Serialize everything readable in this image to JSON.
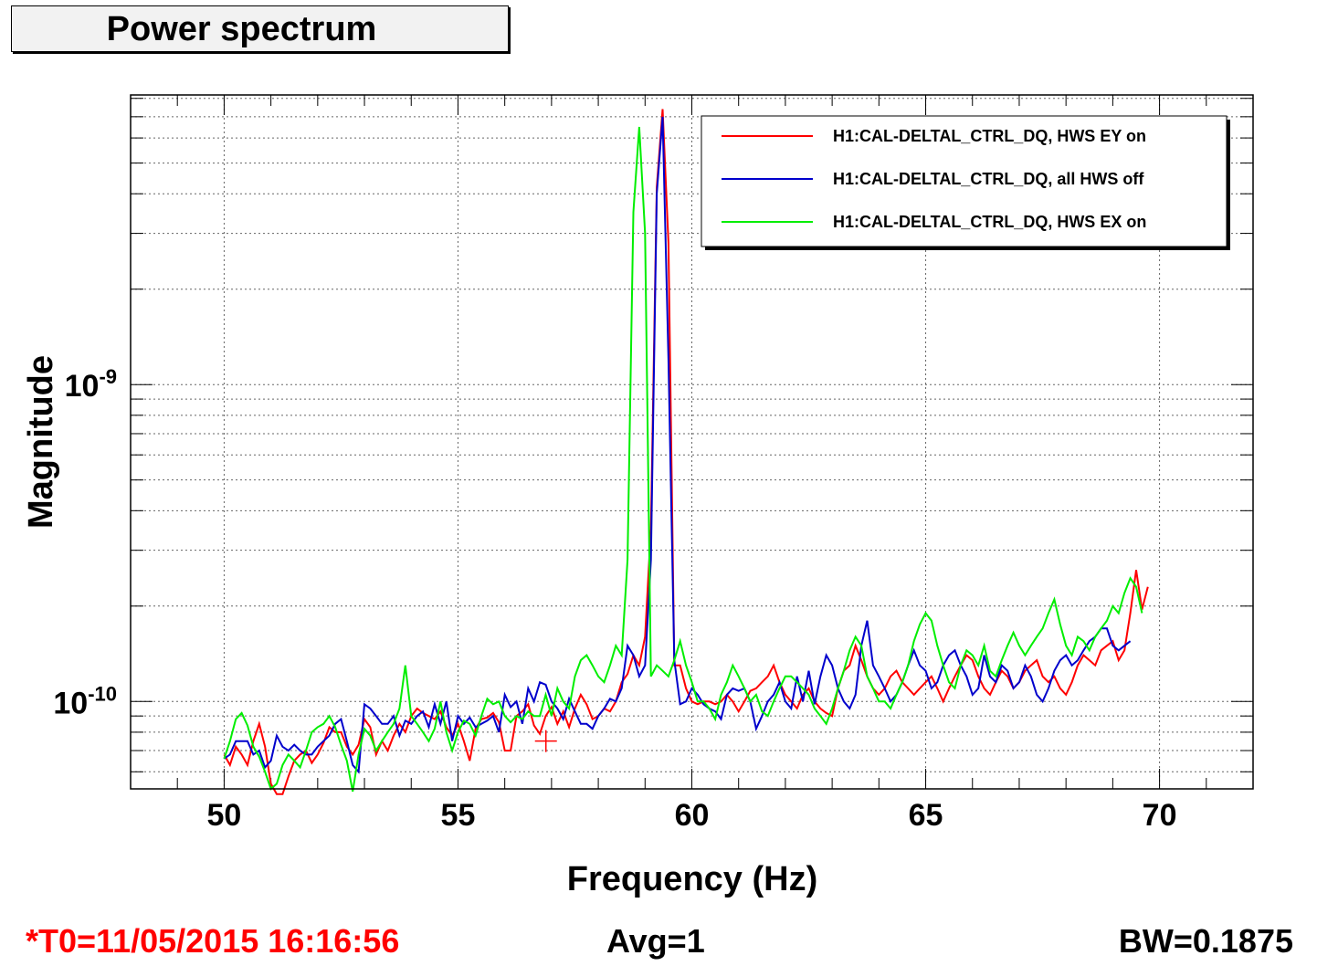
{
  "title": "Power spectrum",
  "footer": {
    "t0": "*T0=11/05/2015 16:16:56",
    "t0_color": "#ff0000",
    "avg": "Avg=1",
    "bw": "BW=0.1875"
  },
  "chart_data": {
    "type": "line",
    "xlabel": "Frequency (Hz)",
    "ylabel": "Magnitude",
    "xlim": [
      48,
      72
    ],
    "ylim": [
      5.3e-11,
      8.2e-09
    ],
    "yscale": "log",
    "grid": true,
    "legend_position": "top-right",
    "x_ticks": [
      50,
      55,
      60,
      65,
      70
    ],
    "y_ticks": [
      {
        "value": 1e-10,
        "base": "10",
        "exp": "-10"
      },
      {
        "value": 1e-09,
        "base": "10",
        "exp": "-9"
      }
    ],
    "series": [
      {
        "name": "H1:CAL-DELTAL_CTRL_DQ, HWS EY on",
        "color": "#ff0000",
        "x0": 50,
        "dx": 0.125,
        "values": [
          6.8e-11,
          6.3e-11,
          7.2e-11,
          6.8e-11,
          6.3e-11,
          7.5e-11,
          8.5e-11,
          7.2e-11,
          5.5e-11,
          5.1e-11,
          5.1e-11,
          5.8e-11,
          6.5e-11,
          6.8e-11,
          7e-11,
          6.4e-11,
          6.8e-11,
          7.4e-11,
          8.3e-11,
          8e-11,
          8e-11,
          7.2e-11,
          6.8e-11,
          7.3e-11,
          8.8e-11,
          8.3e-11,
          6.8e-11,
          7.5e-11,
          7e-11,
          7.8e-11,
          8.5e-11,
          8e-11,
          9e-11,
          9.5e-11,
          9.2e-11,
          9e-11,
          8.8e-11,
          9.3e-11,
          8.3e-11,
          7.8e-11,
          8.5e-11,
          7.5e-11,
          6.5e-11,
          8.2e-11,
          8.8e-11,
          8.9e-11,
          9.2e-11,
          8.6e-11,
          7e-11,
          7e-11,
          9e-11,
          9.3e-11,
          9.8e-11,
          8.4e-11,
          7.9e-11,
          9e-11,
          9.6e-11,
          8.5e-11,
          9.3e-11,
          8.3e-11,
          9.5e-11,
          1.05e-10,
          9.8e-11,
          8.8e-11,
          9e-11,
          9.5e-11,
          9.3e-11,
          1e-10,
          1.15e-10,
          1.22e-10,
          1.4e-10,
          1.3e-10,
          1.6e-10,
          3.5e-10,
          4.2e-09,
          7.4e-09,
          2.8e-09,
          1.3e-10,
          1.3e-10,
          1.1e-10,
          1e-10,
          9.8e-11,
          1e-10,
          1e-10,
          9.8e-11,
          1e-10,
          1.05e-10,
          1e-10,
          9.3e-11,
          1e-10,
          1.08e-10,
          1.1e-10,
          1.15e-10,
          1.2e-10,
          1.3e-10,
          1.15e-10,
          1.05e-10,
          1e-10,
          9.5e-11,
          1.05e-10,
          1.1e-10,
          1e-10,
          9.5e-11,
          9.2e-11,
          9e-11,
          1.1e-10,
          1.25e-10,
          1.3e-10,
          1.5e-10,
          1.35e-10,
          1.2e-10,
          1.1e-10,
          1.05e-10,
          1.1e-10,
          1.2e-10,
          1.25e-10,
          1.15e-10,
          1.1e-10,
          1.05e-10,
          1.1e-10,
          1.15e-10,
          1.2e-10,
          1.1e-10,
          1e-10,
          1.1e-10,
          1.2e-10,
          1.3e-10,
          1.4e-10,
          1.35e-10,
          1.2e-10,
          1.1e-10,
          1.05e-10,
          1.15e-10,
          1.25e-10,
          1.2e-10,
          1.1e-10,
          1.15e-10,
          1.25e-10,
          1.3e-10,
          1.35e-10,
          1.2e-10,
          1.15e-10,
          1.2e-10,
          1.1e-10,
          1.05e-10,
          1.15e-10,
          1.3e-10,
          1.4e-10,
          1.35e-10,
          1.3e-10,
          1.45e-10,
          1.5e-10,
          1.55e-10,
          1.35e-10,
          1.45e-10,
          1.9e-10,
          2.6e-10,
          1.95e-10,
          2.3e-10
        ]
      },
      {
        "name": "H1:CAL-DELTAL_CTRL_DQ, all HWS off",
        "color": "#0000cc",
        "x0": 50,
        "dx": 0.125,
        "values": [
          6.6e-11,
          6.8e-11,
          7.5e-11,
          7.5e-11,
          7.5e-11,
          6.8e-11,
          7e-11,
          6.2e-11,
          6.5e-11,
          7.8e-11,
          7.2e-11,
          7e-11,
          7.3e-11,
          7e-11,
          6.8e-11,
          6.8e-11,
          7.2e-11,
          7.5e-11,
          7.8e-11,
          8.5e-11,
          8.8e-11,
          7.5e-11,
          6.3e-11,
          6e-11,
          9.8e-11,
          9.5e-11,
          9e-11,
          8.5e-11,
          8.5e-11,
          9e-11,
          7.8e-11,
          8.7e-11,
          8.5e-11,
          9e-11,
          9.3e-11,
          8.3e-11,
          9.8e-11,
          8.5e-11,
          1e-10,
          7.5e-11,
          9e-11,
          8.5e-11,
          8.9e-11,
          8.3e-11,
          8.5e-11,
          8.7e-11,
          9e-11,
          8e-11,
          1.05e-10,
          9.6e-11,
          1e-10,
          8.5e-11,
          1.1e-10,
          1e-10,
          1.15e-10,
          1.13e-10,
          1e-10,
          9.5e-11,
          8.8e-11,
          1.02e-10,
          9.3e-11,
          8.5e-11,
          8.5e-11,
          8.2e-11,
          9e-11,
          9.5e-11,
          1.02e-10,
          1e-10,
          1.1e-10,
          1.5e-10,
          1.4e-10,
          1.2e-10,
          1.3e-10,
          2.8e-10,
          4e-09,
          7e-09,
          1.2e-09,
          1.35e-10,
          9.8e-11,
          1e-10,
          1.1e-10,
          1.05e-10,
          9.8e-11,
          9.5e-11,
          9.3e-11,
          8.8e-11,
          1.05e-10,
          1.1e-10,
          1.08e-10,
          1.1e-10,
          1e-10,
          8.2e-11,
          9e-11,
          1e-10,
          1.05e-10,
          1.15e-10,
          1e-10,
          9.5e-11,
          1.2e-10,
          1e-10,
          1.25e-10,
          9.8e-11,
          1.2e-10,
          1.4e-10,
          1.3e-10,
          1.1e-10,
          1e-10,
          9.5e-11,
          1.05e-10,
          1.5e-10,
          1.8e-10,
          1.3e-10,
          1.2e-10,
          1.1e-10,
          1e-10,
          1.05e-10,
          1.15e-10,
          1.3e-10,
          1.45e-10,
          1.3e-10,
          1.25e-10,
          1.1e-10,
          1.15e-10,
          1.3e-10,
          1.4e-10,
          1.45e-10,
          1.3e-10,
          1.2e-10,
          1.05e-10,
          1.1e-10,
          1.4e-10,
          1.2e-10,
          1.15e-10,
          1.3e-10,
          1.25e-10,
          1.1e-10,
          1.15e-10,
          1.3e-10,
          1.2e-10,
          1.05e-10,
          1e-10,
          1.1e-10,
          1.25e-10,
          1.35e-10,
          1.4e-10,
          1.3e-10,
          1.35e-10,
          1.45e-10,
          1.55e-10,
          1.6e-10,
          1.7e-10,
          1.7e-10,
          1.5e-10,
          1.45e-10,
          1.5e-10,
          1.55e-10
        ]
      },
      {
        "name": "H1:CAL-DELTAL_CTRL_DQ, HWS EX on",
        "color": "#00ee00",
        "x0": 50,
        "dx": 0.125,
        "values": [
          6.6e-11,
          7.5e-11,
          8.8e-11,
          9.2e-11,
          8.4e-11,
          7.2e-11,
          6.7e-11,
          6e-11,
          5.3e-11,
          5.5e-11,
          6.3e-11,
          6.8e-11,
          6.5e-11,
          6.2e-11,
          7e-11,
          8e-11,
          8.3e-11,
          8.5e-11,
          9e-11,
          8.3e-11,
          7.3e-11,
          6.5e-11,
          5.2e-11,
          6.8e-11,
          8.2e-11,
          7.8e-11,
          7e-11,
          7.5e-11,
          8e-11,
          8.5e-11,
          9.5e-11,
          1.3e-10,
          9e-11,
          8.5e-11,
          8e-11,
          7.5e-11,
          8.2e-11,
          1e-10,
          8e-11,
          7e-11,
          8e-11,
          8.7e-11,
          8.5e-11,
          7.8e-11,
          9e-11,
          1.02e-10,
          9.8e-11,
          1e-10,
          9e-11,
          8.6e-11,
          9e-11,
          8.8e-11,
          9.3e-11,
          9e-11,
          9e-11,
          1.05e-10,
          9e-11,
          1.1e-10,
          1e-10,
          9.5e-11,
          1.2e-10,
          1.35e-10,
          1.4e-10,
          1.3e-10,
          1.2e-10,
          1.15e-10,
          1.3e-10,
          1.5e-10,
          1.4e-10,
          2.8e-10,
          3.5e-09,
          6.5e-09,
          3e-09,
          1.2e-10,
          1.3e-10,
          1.25e-10,
          1.2e-10,
          1.35e-10,
          1.55e-10,
          1.3e-10,
          1.15e-10,
          1e-10,
          1e-10,
          9.5e-11,
          8.8e-11,
          1.05e-10,
          1.15e-10,
          1.3e-10,
          1.2e-10,
          1.1e-10,
          1e-10,
          1.05e-10,
          9.3e-11,
          9e-11,
          1e-10,
          1.1e-10,
          1.2e-10,
          1.2e-10,
          1.15e-10,
          1.1e-10,
          1.05e-10,
          9.5e-11,
          9e-11,
          8.5e-11,
          9.5e-11,
          1.1e-10,
          1.25e-10,
          1.45e-10,
          1.6e-10,
          1.5e-10,
          1.2e-10,
          1.1e-10,
          1e-10,
          1e-10,
          9.5e-11,
          1.05e-10,
          1.15e-10,
          1.3e-10,
          1.55e-10,
          1.75e-10,
          1.9e-10,
          1.8e-10,
          1.5e-10,
          1.3e-10,
          1.15e-10,
          1.1e-10,
          1.3e-10,
          1.45e-10,
          1.4e-10,
          1.3e-10,
          1.5e-10,
          1.25e-10,
          1.2e-10,
          1.35e-10,
          1.5e-10,
          1.65e-10,
          1.5e-10,
          1.4e-10,
          1.5e-10,
          1.6e-10,
          1.7e-10,
          1.9e-10,
          2.1e-10,
          1.75e-10,
          1.5e-10,
          1.4e-10,
          1.6e-10,
          1.55e-10,
          1.45e-10,
          1.6e-10,
          1.7e-10,
          1.8e-10,
          2e-10,
          1.9e-10,
          2.2e-10,
          2.45e-10,
          2.3e-10,
          1.9e-10
        ]
      }
    ]
  }
}
